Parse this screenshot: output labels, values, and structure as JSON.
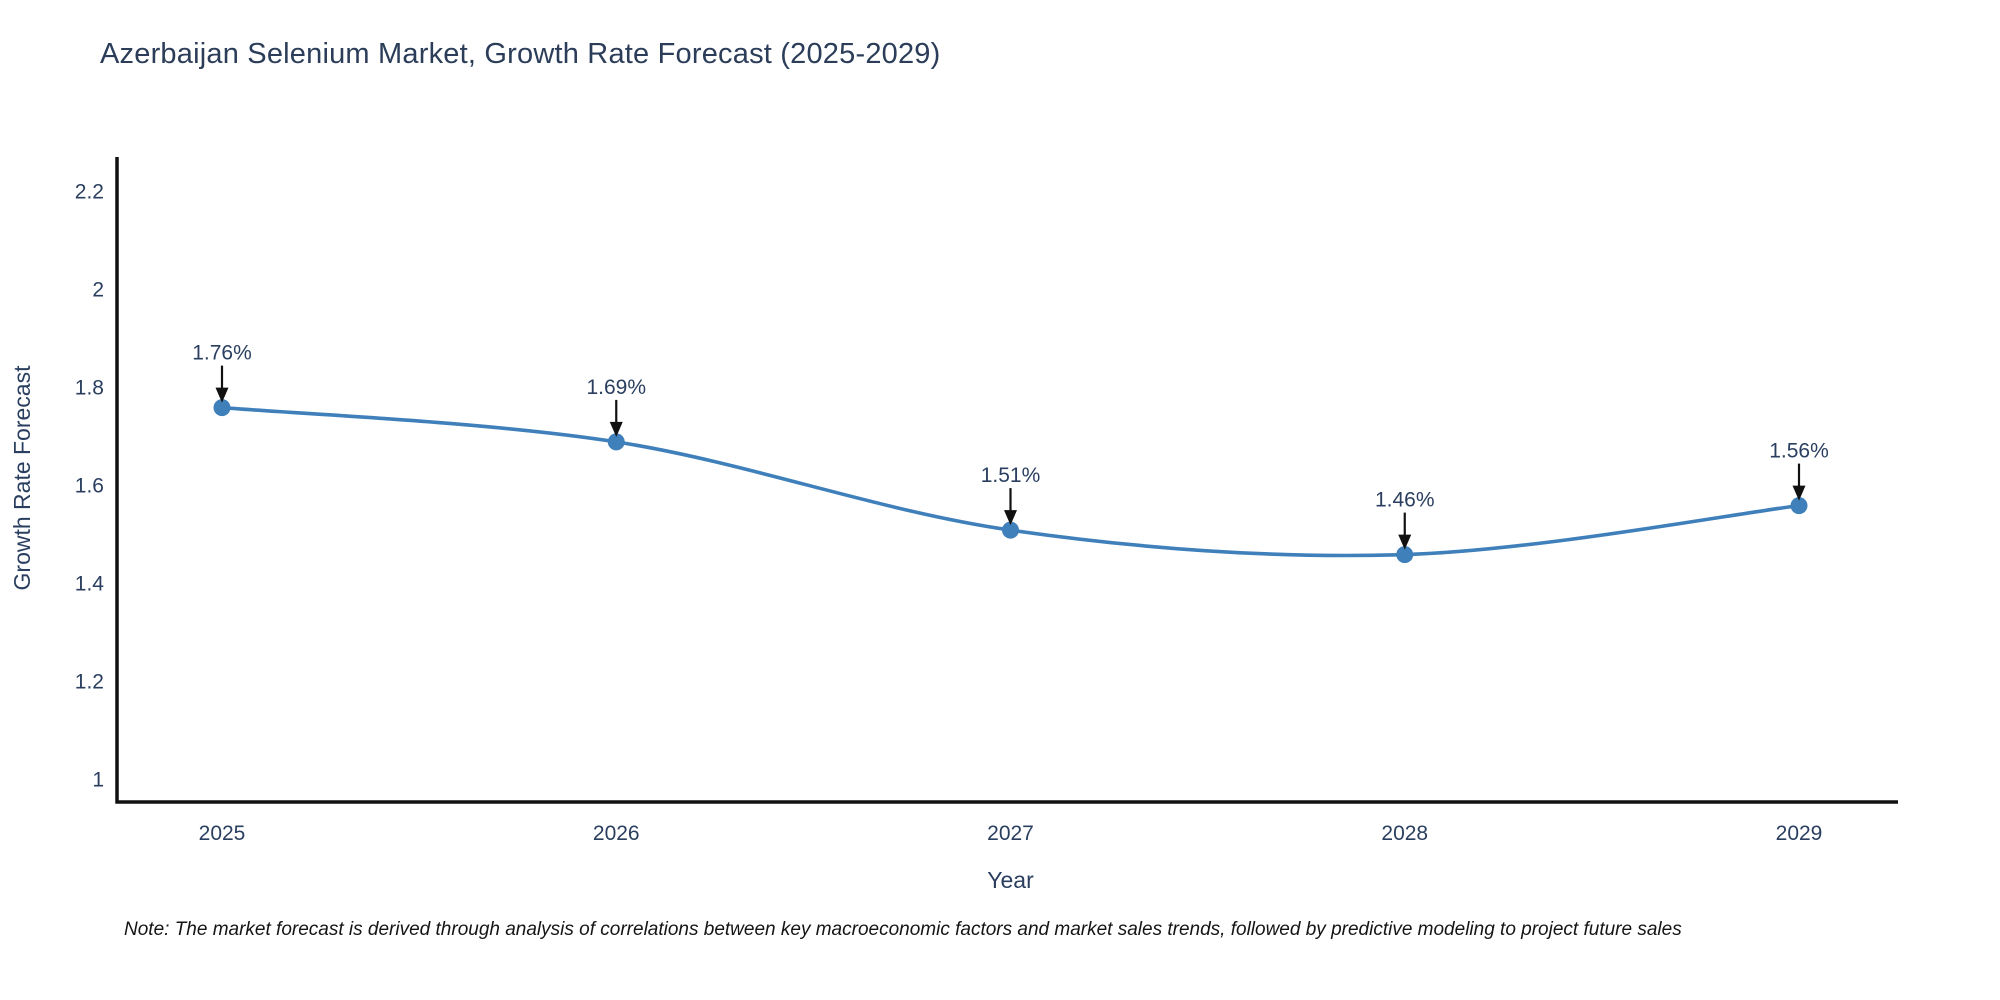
{
  "title": "Azerbaijan Selenium Market, Growth Rate Forecast (2025-2029)",
  "note": "Note: The market forecast is derived through analysis of correlations between key macroeconomic factors and market sales trends, followed by predictive modeling to project future sales",
  "chart_data": {
    "type": "line",
    "title": "Azerbaijan Selenium Market, Growth Rate Forecast (2025-2029)",
    "xlabel": "Year",
    "ylabel": "Growth Rate Forecast",
    "categories": [
      "2025",
      "2026",
      "2027",
      "2028",
      "2029"
    ],
    "x": [
      2025,
      2026,
      2027,
      2028,
      2029
    ],
    "values": [
      1.76,
      1.69,
      1.51,
      1.46,
      1.56
    ],
    "point_labels": [
      "1.76%",
      "1.69%",
      "1.51%",
      "1.46%",
      "1.56%"
    ],
    "ytick_labels": [
      "1",
      "1.2",
      "1.4",
      "1.6",
      "1.8",
      "2",
      "2.2"
    ],
    "yticks": [
      1,
      1.2,
      1.4,
      1.6,
      1.8,
      2,
      2.2
    ],
    "ylim": [
      0.95,
      2.27
    ],
    "grid": false,
    "legend": "none",
    "line_shape": "spline",
    "annotations": "value labels with downward black arrows at each data point",
    "colors": {
      "line": "#3f7fba",
      "marker": "#3f7fba",
      "text": "#2a3f5f",
      "axis": "#111111",
      "arrow": "#111111",
      "note_text": "#151515",
      "background": "#ffffff"
    }
  }
}
